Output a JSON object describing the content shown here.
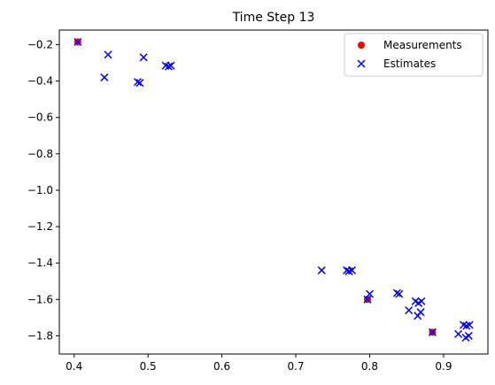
{
  "chart_data": {
    "type": "scatter",
    "title": "Time Step 13",
    "xlabel": "",
    "ylabel": "",
    "xlim": [
      0.38,
      0.96
    ],
    "ylim": [
      -1.9,
      -0.12
    ],
    "xticks": [
      0.4,
      0.5,
      0.6,
      0.7,
      0.8,
      0.9
    ],
    "xtick_labels": [
      "0.4",
      "0.5",
      "0.6",
      "0.7",
      "0.8",
      "0.9"
    ],
    "yticks": [
      -0.2,
      -0.4,
      -0.6,
      -0.8,
      -1.0,
      -1.2,
      -1.4,
      -1.6,
      -1.8
    ],
    "ytick_labels": [
      "−0.2",
      "−0.4",
      "−0.6",
      "−0.8",
      "−1.0",
      "−1.2",
      "−1.4",
      "−1.6",
      "−1.8"
    ],
    "grid": false,
    "legend_position": "top-right",
    "series": [
      {
        "name": "Measurements",
        "marker": "circle",
        "color": "#ff0000",
        "points": [
          [
            0.405,
            -0.185
          ],
          [
            0.797,
            -1.6
          ],
          [
            0.885,
            -1.78
          ]
        ]
      },
      {
        "name": "Estimates",
        "marker": "x",
        "color": "#0000ff",
        "points": [
          [
            0.405,
            -0.185
          ],
          [
            0.446,
            -0.255
          ],
          [
            0.441,
            -0.38
          ],
          [
            0.494,
            -0.27
          ],
          [
            0.486,
            -0.405
          ],
          [
            0.489,
            -0.41
          ],
          [
            0.524,
            -0.315
          ],
          [
            0.528,
            -0.32
          ],
          [
            0.531,
            -0.315
          ],
          [
            0.735,
            -1.44
          ],
          [
            0.769,
            -1.44
          ],
          [
            0.772,
            -1.445
          ],
          [
            0.776,
            -1.44
          ],
          [
            0.797,
            -1.6
          ],
          [
            0.8,
            -1.57
          ],
          [
            0.837,
            -1.565
          ],
          [
            0.84,
            -1.57
          ],
          [
            0.853,
            -1.66
          ],
          [
            0.862,
            -1.61
          ],
          [
            0.866,
            -1.62
          ],
          [
            0.87,
            -1.61
          ],
          [
            0.865,
            -1.69
          ],
          [
            0.869,
            -1.67
          ],
          [
            0.885,
            -1.78
          ],
          [
            0.92,
            -1.79
          ],
          [
            0.927,
            -1.74
          ],
          [
            0.931,
            -1.745
          ],
          [
            0.935,
            -1.74
          ],
          [
            0.93,
            -1.81
          ],
          [
            0.934,
            -1.8
          ]
        ]
      }
    ]
  }
}
